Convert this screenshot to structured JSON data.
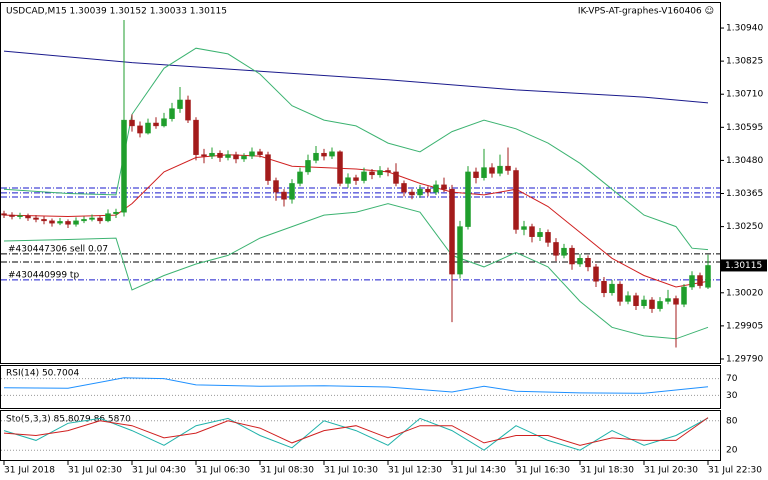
{
  "chart_data": {
    "type": "candlestick",
    "title": "USDCAD,M15  1.30039 1.30152 1.30033 1.30115",
    "subtitle": "IK-VPS-AT-graphes-V160406 ☺",
    "up_color": "#1f9e2c",
    "down_color": "#a31b1b",
    "ohlc": [
      [
        1.30295,
        1.30305,
        1.3028,
        1.3029
      ],
      [
        1.3029,
        1.303,
        1.30275,
        1.30285
      ],
      [
        1.30285,
        1.30298,
        1.30276,
        1.30288
      ],
      [
        1.30288,
        1.30295,
        1.3027,
        1.3028
      ],
      [
        1.3028,
        1.3029,
        1.30265,
        1.30275
      ],
      [
        1.30275,
        1.30285,
        1.30258,
        1.3027
      ],
      [
        1.3027,
        1.30278,
        1.3025,
        1.30262
      ],
      [
        1.30262,
        1.3028,
        1.30255,
        1.30268
      ],
      [
        1.30268,
        1.30275,
        1.30245,
        1.30258
      ],
      [
        1.30258,
        1.30282,
        1.3025,
        1.3027
      ],
      [
        1.3027,
        1.30285,
        1.30262,
        1.30275
      ],
      [
        1.30275,
        1.30292,
        1.30268,
        1.3028
      ],
      [
        1.3028,
        1.30288,
        1.3026,
        1.3027
      ],
      [
        1.3027,
        1.3031,
        1.30265,
        1.30295
      ],
      [
        1.30295,
        1.30312,
        1.3028,
        1.303
      ],
      [
        1.303,
        1.30968,
        1.30285,
        1.3062
      ],
      [
        1.3062,
        1.3064,
        1.3058,
        1.306
      ],
      [
        1.306,
        1.30615,
        1.3056,
        1.30575
      ],
      [
        1.30575,
        1.30625,
        1.3057,
        1.3061
      ],
      [
        1.3061,
        1.3063,
        1.3059,
        1.306
      ],
      [
        1.306,
        1.30645,
        1.30595,
        1.30625
      ],
      [
        1.30625,
        1.3068,
        1.30615,
        1.3066
      ],
      [
        1.3066,
        1.30735,
        1.30645,
        1.3069
      ],
      [
        1.3069,
        1.30705,
        1.3061,
        1.3062
      ],
      [
        1.3062,
        1.3063,
        1.3048,
        1.305
      ],
      [
        1.305,
        1.3052,
        1.3047,
        1.30495
      ],
      [
        1.30495,
        1.30525,
        1.30485,
        1.30505
      ],
      [
        1.30505,
        1.30515,
        1.30475,
        1.3049
      ],
      [
        1.3049,
        1.30515,
        1.3048,
        1.305
      ],
      [
        1.305,
        1.3051,
        1.3047,
        1.30485
      ],
      [
        1.30485,
        1.30505,
        1.30475,
        1.30495
      ],
      [
        1.30495,
        1.30525,
        1.30485,
        1.3051
      ],
      [
        1.3051,
        1.3052,
        1.3049,
        1.305
      ],
      [
        1.305,
        1.3051,
        1.30395,
        1.3041
      ],
      [
        1.3041,
        1.3042,
        1.3034,
        1.3037
      ],
      [
        1.3037,
        1.3038,
        1.3032,
        1.30345
      ],
      [
        1.30345,
        1.30415,
        1.3033,
        1.304
      ],
      [
        1.304,
        1.30455,
        1.3039,
        1.3044
      ],
      [
        1.3044,
        1.305,
        1.3043,
        1.3048
      ],
      [
        1.3048,
        1.3053,
        1.3047,
        1.30505
      ],
      [
        1.30505,
        1.3052,
        1.3048,
        1.30495
      ],
      [
        1.30495,
        1.30525,
        1.30485,
        1.3051
      ],
      [
        1.3051,
        1.30515,
        1.3039,
        1.304
      ],
      [
        1.304,
        1.30435,
        1.30385,
        1.3042
      ],
      [
        1.3042,
        1.3043,
        1.30395,
        1.3041
      ],
      [
        1.3041,
        1.30455,
        1.304,
        1.3044
      ],
      [
        1.3044,
        1.3045,
        1.30415,
        1.3043
      ],
      [
        1.3043,
        1.3046,
        1.3042,
        1.30445
      ],
      [
        1.30445,
        1.30455,
        1.30425,
        1.3044
      ],
      [
        1.3044,
        1.3047,
        1.3039,
        1.304
      ],
      [
        1.304,
        1.3041,
        1.30355,
        1.3037
      ],
      [
        1.3037,
        1.3038,
        1.30345,
        1.3036
      ],
      [
        1.3036,
        1.30395,
        1.3035,
        1.3038
      ],
      [
        1.3038,
        1.3039,
        1.30355,
        1.3037
      ],
      [
        1.3037,
        1.3041,
        1.3036,
        1.30395
      ],
      [
        1.30395,
        1.3042,
        1.3037,
        1.3038
      ],
      [
        1.3038,
        1.30395,
        1.29918,
        1.30085
      ],
      [
        1.30085,
        1.3027,
        1.3007,
        1.3025
      ],
      [
        1.3025,
        1.3046,
        1.3024,
        1.3044
      ],
      [
        1.3044,
        1.30455,
        1.304,
        1.3042
      ],
      [
        1.3042,
        1.3052,
        1.3041,
        1.30455
      ],
      [
        1.30455,
        1.3047,
        1.3042,
        1.30435
      ],
      [
        1.30435,
        1.305,
        1.30425,
        1.3046
      ],
      [
        1.3046,
        1.30525,
        1.3043,
        1.30445
      ],
      [
        1.30445,
        1.30455,
        1.30225,
        1.3024
      ],
      [
        1.3024,
        1.3027,
        1.3022,
        1.3025
      ],
      [
        1.3025,
        1.3026,
        1.30195,
        1.30215
      ],
      [
        1.30215,
        1.30245,
        1.302,
        1.3023
      ],
      [
        1.3023,
        1.3024,
        1.3018,
        1.30195
      ],
      [
        1.30195,
        1.3021,
        1.3013,
        1.3015
      ],
      [
        1.3015,
        1.3019,
        1.3014,
        1.30175
      ],
      [
        1.30175,
        1.30185,
        1.301,
        1.3012
      ],
      [
        1.3012,
        1.30155,
        1.3011,
        1.3014
      ],
      [
        1.3014,
        1.3015,
        1.30095,
        1.3011
      ],
      [
        1.3011,
        1.3012,
        1.3004,
        1.3006
      ],
      [
        1.3006,
        1.30075,
        1.30005,
        1.3002
      ],
      [
        1.3002,
        1.30065,
        1.3001,
        1.3005
      ],
      [
        1.3005,
        1.3006,
        1.29975,
        1.2999
      ],
      [
        1.2999,
        1.30025,
        1.2998,
        1.3001
      ],
      [
        1.3001,
        1.3002,
        1.2996,
        1.29975
      ],
      [
        1.29975,
        1.3001,
        1.29965,
        1.29995
      ],
      [
        1.29995,
        1.30005,
        1.2995,
        1.29965
      ],
      [
        1.29965,
        1.30005,
        1.29955,
        1.2999
      ],
      [
        1.2999,
        1.3003,
        1.2998,
        1.3
      ],
      [
        1.3,
        1.3001,
        1.2983,
        1.2998
      ],
      [
        1.2998,
        1.3005,
        1.2997,
        1.3004
      ],
      [
        1.3004,
        1.30095,
        1.3003,
        1.3008
      ],
      [
        1.3008,
        1.3009,
        1.30035,
        1.30045
      ],
      [
        1.30039,
        1.30152,
        1.30033,
        1.30115
      ]
    ],
    "xlim": [
      -0.5,
      89.5
    ],
    "ylim": [
      1.29776,
      1.31027
    ],
    "yticks": [
      {
        "value": 1.3094,
        "label": "1.30940"
      },
      1.30825,
      {
        "value": 1.3071,
        "label": "1.30710"
      },
      1.30595,
      {
        "value": 1.3048,
        "label": "1.30480"
      },
      1.30365,
      {
        "value": 1.3025,
        "label": "1.30250"
      },
      {
        "value": 1.3002,
        "label": "1.30020"
      },
      1.29905,
      {
        "value": 1.2979,
        "label": "1.29790"
      }
    ],
    "xticks": [
      {
        "value": 0,
        "label": "31 Jul 2018"
      },
      {
        "value": 8,
        "label": "31 Jul 02:30"
      },
      {
        "value": 16,
        "label": "31 Jul 04:30"
      },
      {
        "value": 24,
        "label": "31 Jul 06:30"
      },
      {
        "value": 32,
        "label": "31 Jul 08:30"
      },
      {
        "value": 40,
        "label": "31 Jul 10:30"
      },
      {
        "value": 48,
        "label": "31 Jul 12:30"
      },
      {
        "value": 56,
        "label": "31 Jul 14:30"
      },
      {
        "value": 64,
        "label": "31 Jul 16:30"
      },
      {
        "value": 72,
        "label": "31 Jul 18:30"
      },
      {
        "value": 80,
        "label": "31 Jul 20:30"
      },
      {
        "value": 88,
        "label": "31 Jul 22:30"
      }
    ],
    "last_price": 1.30115,
    "overlays": [
      {
        "color": "#1a1a8c",
        "x": [
          0,
          16,
          32,
          48,
          64,
          80,
          88
        ],
        "values": [
          1.3086,
          1.3082,
          1.3079,
          1.3076,
          1.30725,
          1.307,
          1.3068
        ]
      },
      {
        "color": "#d02020",
        "x": [
          0,
          8,
          14,
          16,
          20,
          24,
          28,
          32,
          36,
          40,
          44,
          48,
          52,
          56,
          60,
          64,
          68,
          72,
          76,
          80,
          84,
          88
        ],
        "values": [
          1.3029,
          1.30285,
          1.3029,
          1.3033,
          1.3044,
          1.3049,
          1.305,
          1.30495,
          1.3046,
          1.30455,
          1.3045,
          1.3044,
          1.304,
          1.3037,
          1.3036,
          1.3038,
          1.3032,
          1.3023,
          1.3014,
          1.3008,
          1.3004,
          1.3006
        ]
      },
      {
        "color": "#3cb371",
        "x": [
          0,
          8,
          14,
          16,
          20,
          24,
          28,
          32,
          36,
          40,
          44,
          48,
          52,
          56,
          60,
          64,
          68,
          72,
          76,
          80,
          84,
          86,
          88
        ],
        "values": [
          1.3038,
          1.30365,
          1.3036,
          1.3064,
          1.308,
          1.3087,
          1.3085,
          1.3078,
          1.3067,
          1.3062,
          1.306,
          1.3054,
          1.3051,
          1.3058,
          1.3062,
          1.3059,
          1.3054,
          1.3047,
          1.3038,
          1.3029,
          1.3025,
          1.30175,
          1.3017
        ]
      },
      {
        "color": "#3cb371",
        "x": [
          0,
          8,
          14,
          16,
          20,
          24,
          28,
          32,
          36,
          40,
          44,
          48,
          52,
          56,
          60,
          64,
          68,
          72,
          76,
          80,
          84,
          88
        ],
        "values": [
          1.302,
          1.30205,
          1.3021,
          1.3003,
          1.3008,
          1.3012,
          1.3015,
          1.3021,
          1.3025,
          1.3029,
          1.303,
          1.3033,
          1.303,
          1.3015,
          1.3011,
          1.3016,
          1.3011,
          1.2999,
          1.299,
          1.2987,
          1.2986,
          1.299
        ]
      }
    ],
    "order_lines": [
      {
        "value": 1.30384,
        "color": "#1a1acc"
      },
      {
        "value": 1.30367,
        "color": "#1a1acc"
      },
      {
        "value": 1.30353,
        "color": "#1a1acc"
      },
      {
        "value": 1.30155,
        "color": "#000000",
        "label": "#430447306 sell 0.07"
      },
      {
        "value": 1.30127,
        "color": "#000000"
      },
      {
        "value": 1.30065,
        "color": "#1a1acc",
        "label": "#430440999 tp"
      }
    ],
    "rsi": {
      "label": "RSI(14) 50.7004",
      "ylim": [
        0,
        100
      ],
      "yticks": [
        70,
        30
      ],
      "color": "#1e90ff",
      "x": [
        0,
        8,
        15,
        20,
        24,
        32,
        40,
        48,
        56,
        60,
        64,
        72,
        80,
        88
      ],
      "values": [
        48,
        47,
        72,
        70,
        55,
        52,
        53,
        50,
        38,
        52,
        40,
        36,
        35,
        50.7004
      ]
    },
    "sto": {
      "label": "Sto(5,3,3) 85.8079 86.5870",
      "ylim": [
        0,
        100
      ],
      "yticks": [
        80,
        20
      ],
      "series": [
        {
          "color": "#20b2aa",
          "x": [
            0,
            4,
            8,
            12,
            16,
            20,
            24,
            28,
            32,
            36,
            40,
            44,
            48,
            52,
            56,
            60,
            64,
            68,
            72,
            76,
            80,
            84,
            88
          ],
          "values": [
            60,
            40,
            75,
            85,
            60,
            30,
            70,
            85,
            50,
            25,
            80,
            60,
            30,
            85,
            60,
            20,
            70,
            40,
            20,
            60,
            30,
            50,
            85.8079
          ]
        },
        {
          "color": "#d02020",
          "x": [
            0,
            4,
            8,
            12,
            16,
            20,
            24,
            28,
            32,
            36,
            40,
            44,
            48,
            52,
            56,
            60,
            64,
            68,
            72,
            76,
            80,
            84,
            88
          ],
          "values": [
            55,
            50,
            60,
            80,
            70,
            45,
            55,
            80,
            65,
            35,
            60,
            70,
            45,
            70,
            70,
            35,
            50,
            50,
            30,
            45,
            40,
            40,
            86.587
          ]
        }
      ]
    }
  }
}
